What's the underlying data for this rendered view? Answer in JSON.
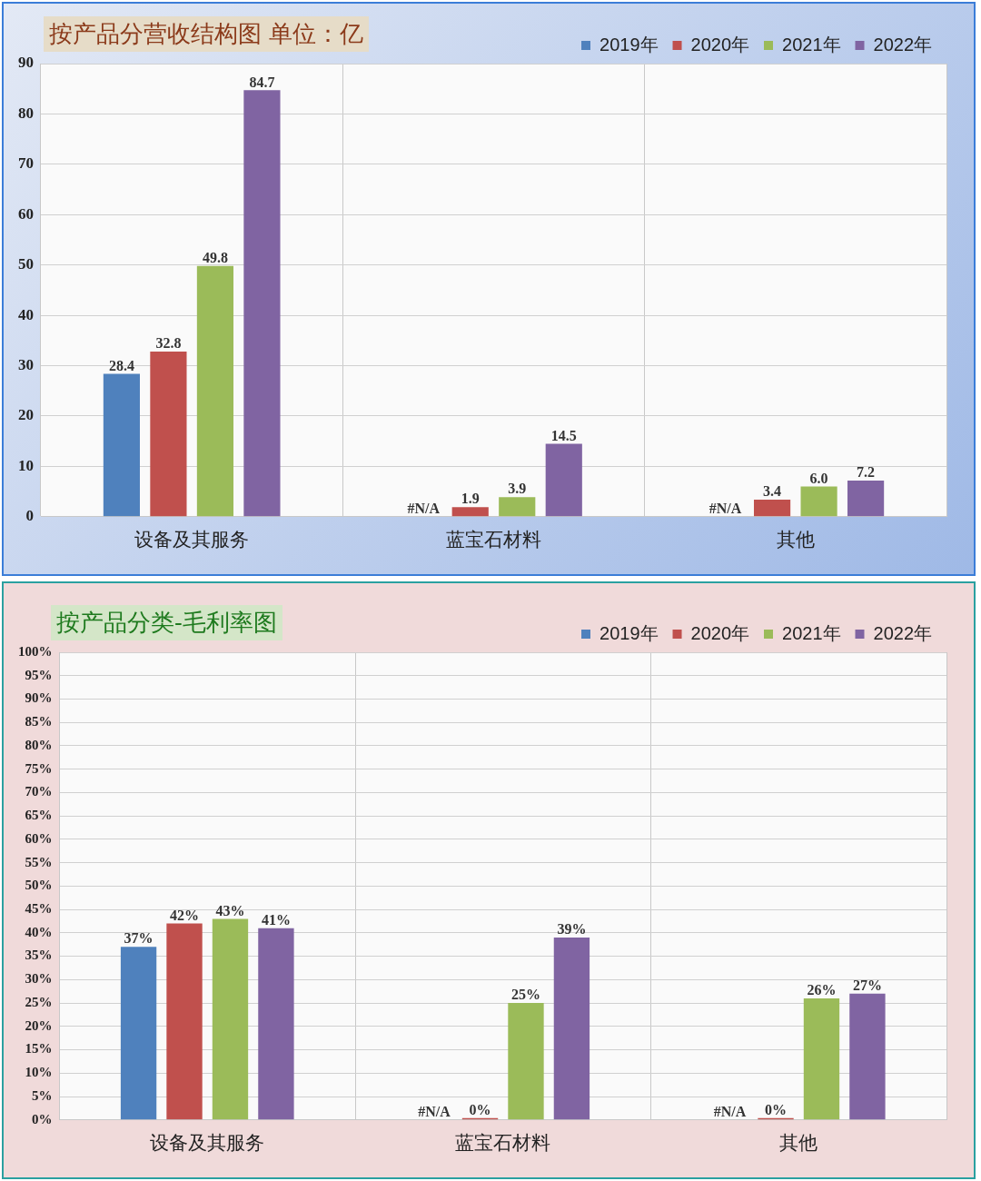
{
  "chart_data": [
    {
      "type": "bar",
      "title": "按产品分营收结构图 单位：亿",
      "categories": [
        "设备及其服务",
        "蓝宝石材料",
        "其他"
      ],
      "series": [
        {
          "name": "2019年",
          "color": "#4f81bd",
          "values": [
            28.4,
            null,
            null
          ],
          "value_labels": [
            "28.4",
            "#N/A",
            "#N/A"
          ]
        },
        {
          "name": "2020年",
          "color": "#c0504d",
          "values": [
            32.8,
            1.9,
            3.4
          ],
          "value_labels": [
            "32.8",
            "1.9",
            "3.4"
          ]
        },
        {
          "name": "2021年",
          "color": "#9bbb59",
          "values": [
            49.8,
            3.9,
            6.0
          ],
          "value_labels": [
            "49.8",
            "3.9",
            "6.0"
          ]
        },
        {
          "name": "2022年",
          "color": "#8064a2",
          "values": [
            84.7,
            14.5,
            7.2
          ],
          "value_labels": [
            "84.7",
            "14.5",
            "7.2"
          ]
        }
      ],
      "ylim": [
        0,
        90
      ],
      "yticks": [
        0,
        10,
        20,
        30,
        40,
        50,
        60,
        70,
        80,
        90
      ],
      "grid": true,
      "legend": "top right"
    },
    {
      "type": "bar",
      "title": "按产品分类-毛利率图",
      "categories": [
        "设备及其服务",
        "蓝宝石材料",
        "其他"
      ],
      "series": [
        {
          "name": "2019年",
          "color": "#4f81bd",
          "values": [
            37,
            null,
            null
          ],
          "value_labels": [
            "37%",
            "#N/A",
            "#N/A"
          ]
        },
        {
          "name": "2020年",
          "color": "#c0504d",
          "values": [
            42,
            0,
            0
          ],
          "value_labels": [
            "42%",
            "0%",
            "0%"
          ]
        },
        {
          "name": "2021年",
          "color": "#9bbb59",
          "values": [
            43,
            25,
            26
          ],
          "value_labels": [
            "43%",
            "25%",
            "26%"
          ]
        },
        {
          "name": "2022年",
          "color": "#8064a2",
          "values": [
            41,
            39,
            27
          ],
          "value_labels": [
            "41%",
            "39%",
            "27%"
          ]
        }
      ],
      "ylim": [
        0,
        100
      ],
      "yticks": [
        {
          "value": 0,
          "label": "0%"
        },
        {
          "value": 5,
          "label": "5%"
        },
        {
          "value": 10,
          "label": "10%"
        },
        {
          "value": 15,
          "label": "15%"
        },
        {
          "value": 20,
          "label": "20%"
        },
        {
          "value": 25,
          "label": "25%"
        },
        {
          "value": 30,
          "label": "30%"
        },
        {
          "value": 35,
          "label": "35%"
        },
        {
          "value": 40,
          "label": "40%"
        },
        {
          "value": 45,
          "label": "45%"
        },
        {
          "value": 50,
          "label": "50%"
        },
        {
          "value": 55,
          "label": "55%"
        },
        {
          "value": 60,
          "label": "60%"
        },
        {
          "value": 65,
          "label": "65%"
        },
        {
          "value": 70,
          "label": "70%"
        },
        {
          "value": 75,
          "label": "75%"
        },
        {
          "value": 80,
          "label": "80%"
        },
        {
          "value": 85,
          "label": "85%"
        },
        {
          "value": 90,
          "label": "90%"
        },
        {
          "value": 95,
          "label": "95%"
        },
        {
          "value": 100,
          "label": "100%"
        }
      ],
      "grid": true,
      "legend": "top right"
    }
  ]
}
